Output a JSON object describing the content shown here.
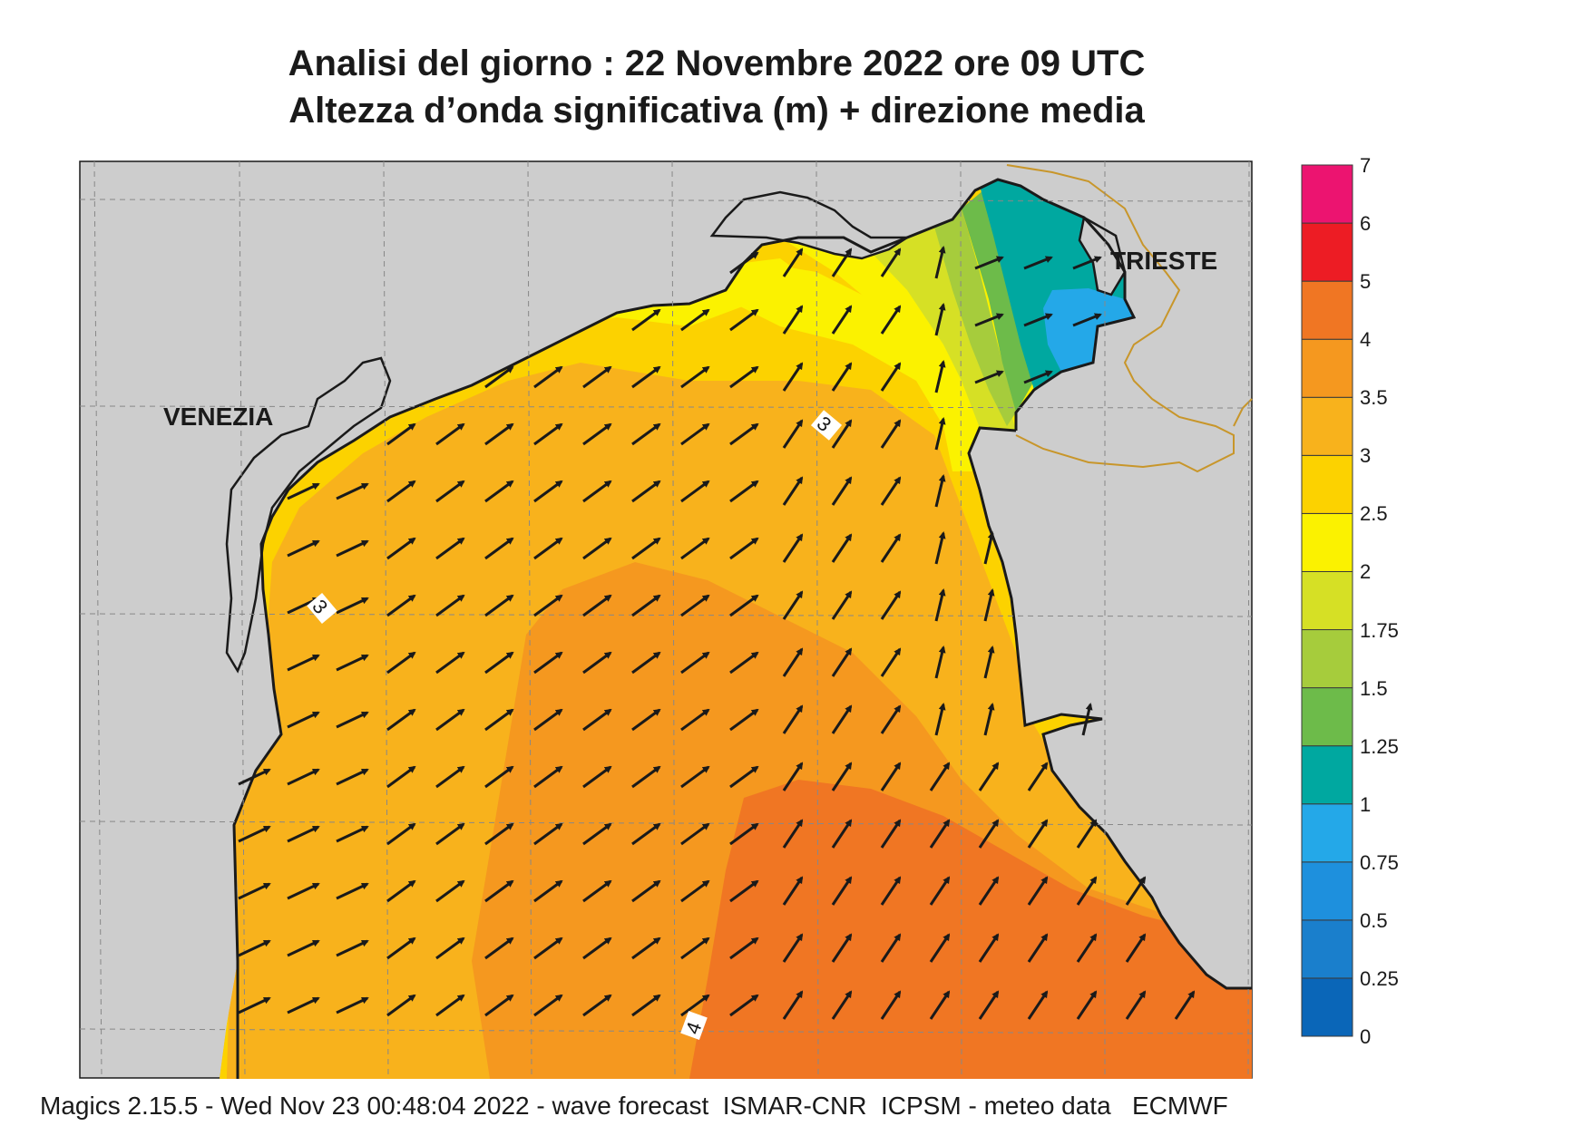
{
  "title_line1": "Analisi del giorno :  22 Novembre  2022   ore 09 UTC",
  "title_line2": "Altezza d’onda significativa (m) + direzione media",
  "cities": {
    "venezia": "VENEZIA",
    "trieste": "TRIESTE"
  },
  "contour_labels": [
    "3",
    "3",
    "4"
  ],
  "legend": {
    "levels": [
      "0",
      "0.25",
      "0.5",
      "0.75",
      "1",
      "1.25",
      "1.5",
      "1.75",
      "2",
      "2.5",
      "3",
      "3.5",
      "4",
      "5",
      "6",
      "7"
    ],
    "colors": [
      "#0a66b8",
      "#1a7fcc",
      "#1e90dd",
      "#24a8e8",
      "#00a8a0",
      "#6dbb4a",
      "#a6cc3c",
      "#d6e025",
      "#fbf200",
      "#fcd200",
      "#f8b21c",
      "#f5981f",
      "#f07623",
      "#ed1c24",
      "#ec1470"
    ]
  },
  "colors": {
    "land": "#cdcdcd",
    "coast": "#1a1a1a",
    "border": "#c8962a",
    "grid": "#888888",
    "arrow": "#1a1a1a"
  },
  "footer": "Magics 2.15.5 - Wed Nov 23 00:48:04 2022 - wave forecast  ISMAR-CNR  ICPSM - meteo data   ECMWF"
}
